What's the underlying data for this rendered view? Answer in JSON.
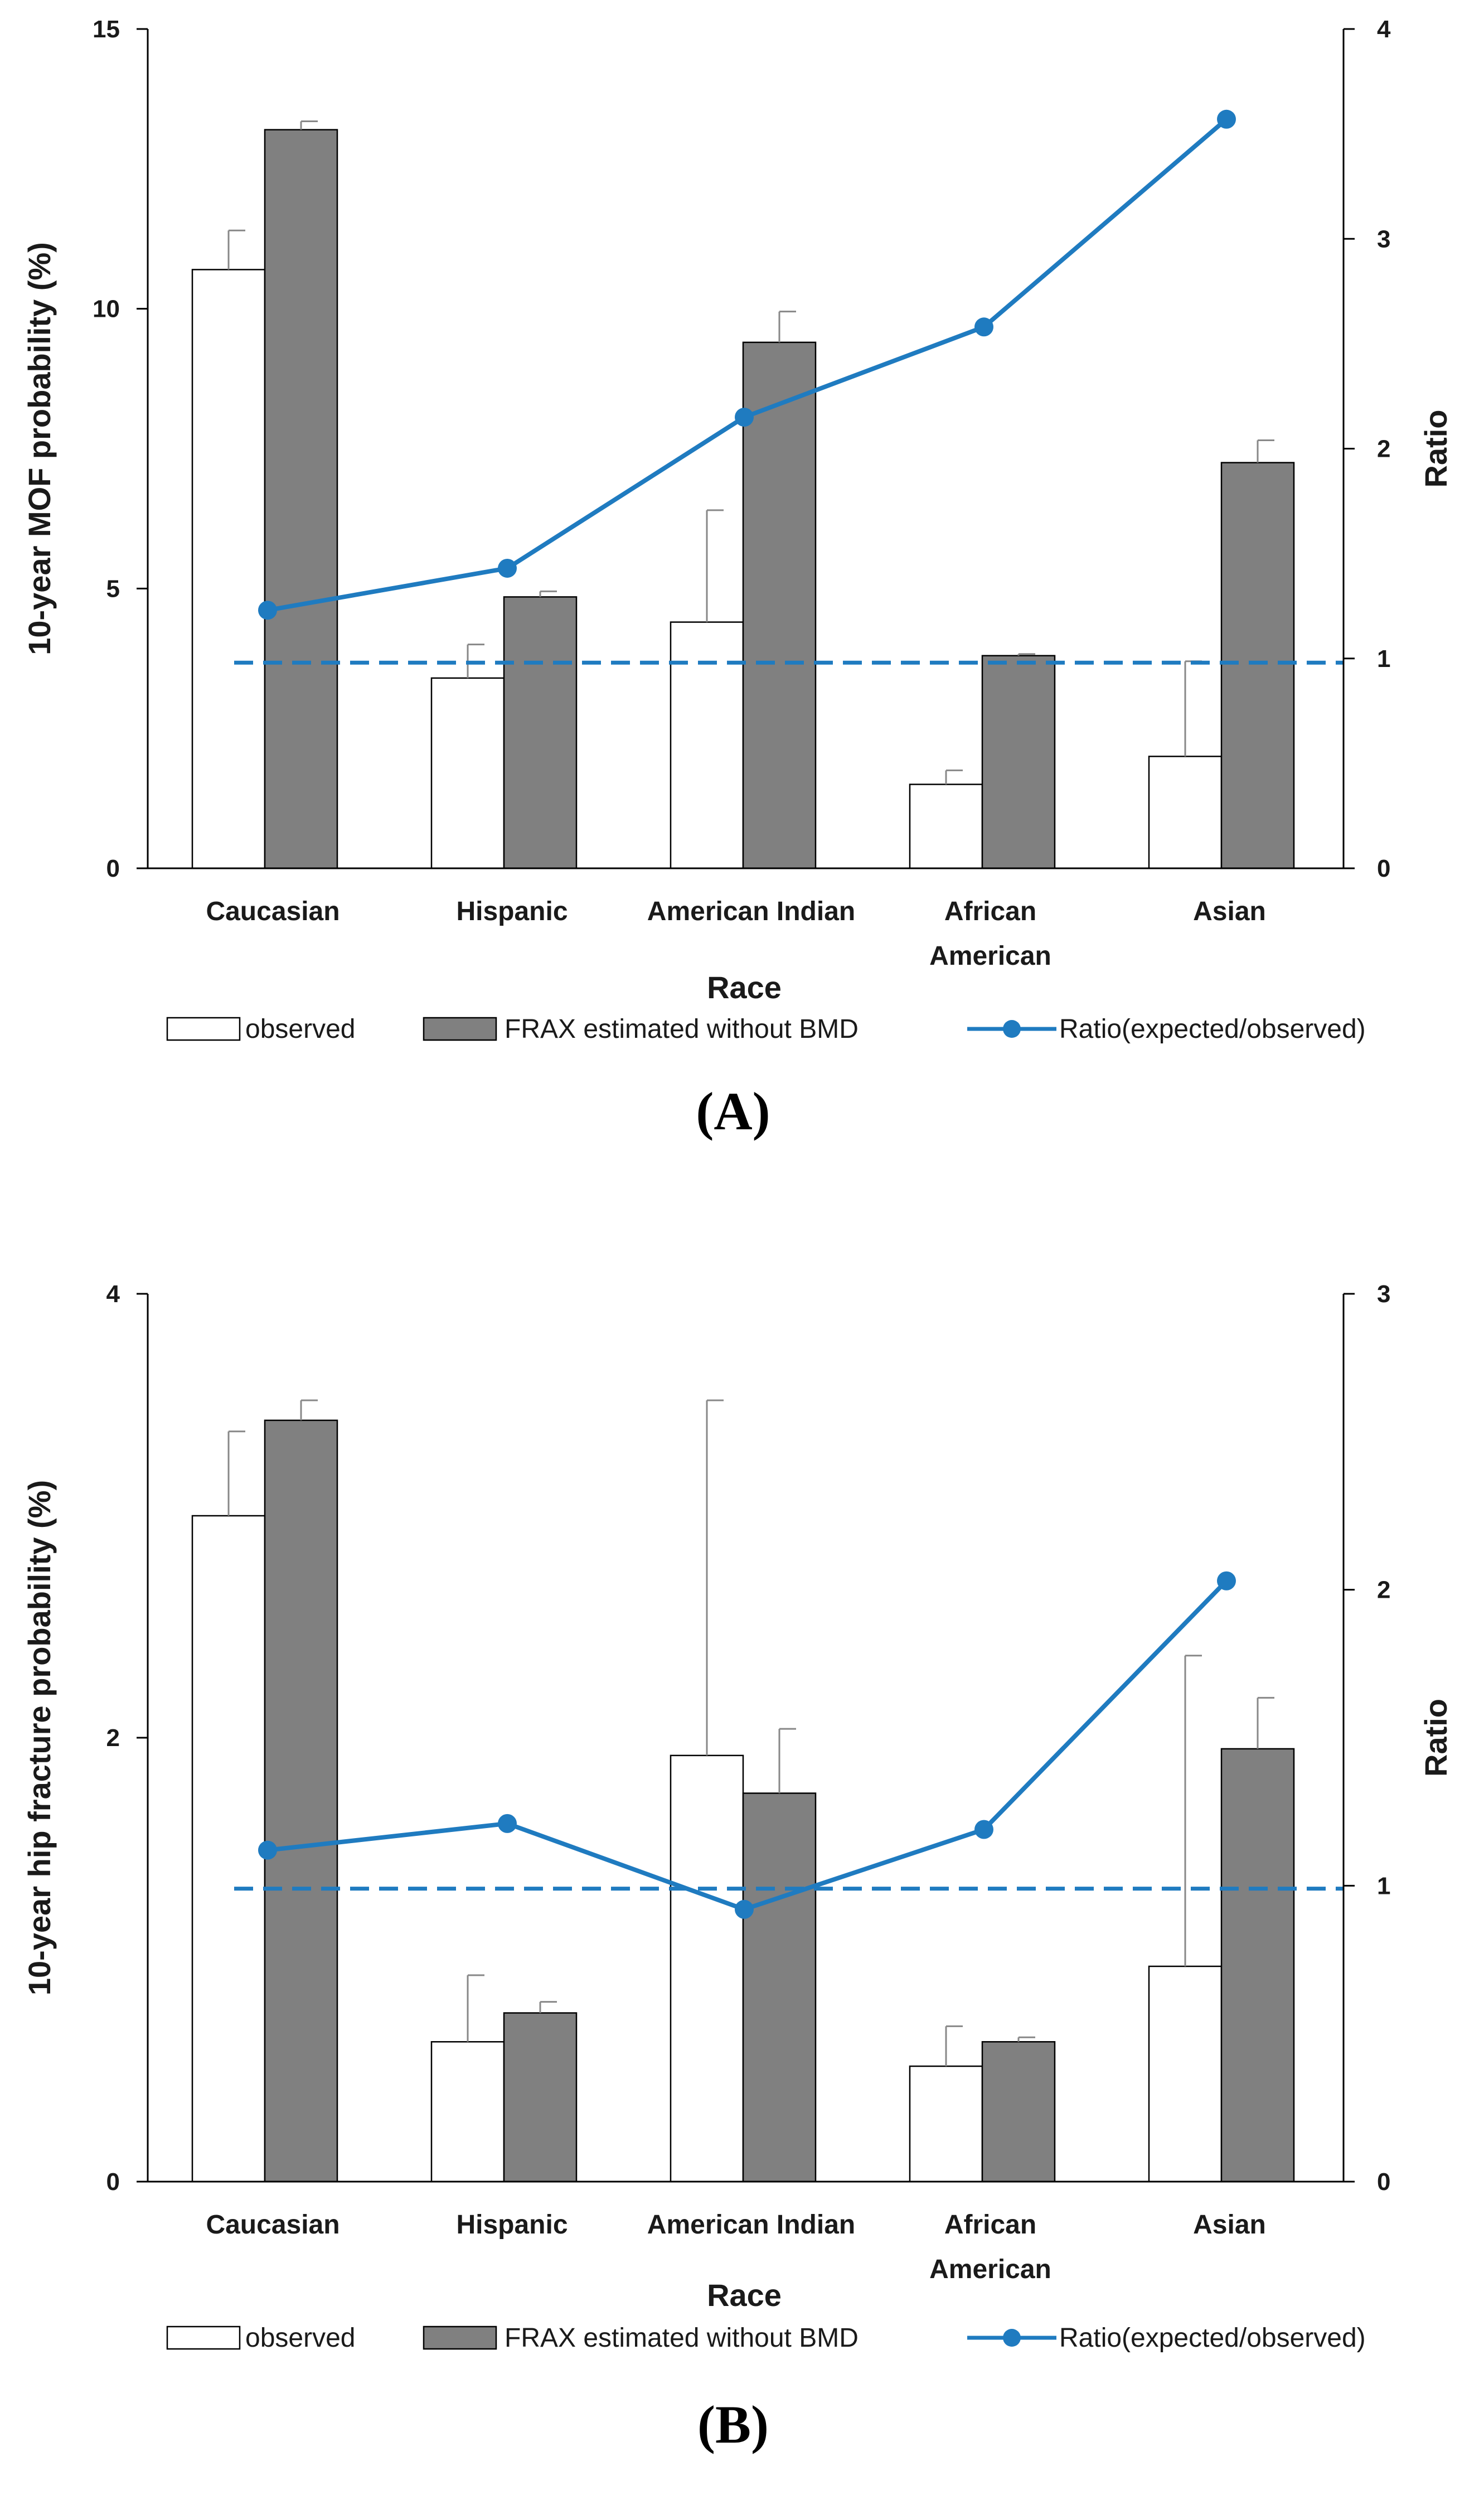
{
  "colors": {
    "observed_fill": "#ffffff",
    "frax_fill": "#808080",
    "ratio_line": "#1f7bc0",
    "reference_line": "#1f7bc0",
    "axis": "#000000",
    "error_bar": "#888888"
  },
  "legend": {
    "observed": "observed",
    "frax": "FRAX estimated without BMD",
    "ratio": "Ratio(expected/observed)"
  },
  "chart_data": [
    {
      "type": "bar",
      "panel_label": "(A)",
      "categories": [
        "Caucasian",
        "Hispanic",
        "American Indian",
        "African American",
        "Asian"
      ],
      "xlabel": "Race",
      "ylabel": "10-year MOF probability (%)",
      "ylabel_right": "Ratio",
      "ylim": [
        0,
        15
      ],
      "y_ticks": [
        "0",
        "5",
        "10",
        "15"
      ],
      "y_tick_values": [
        0,
        5,
        10,
        15
      ],
      "ylim_right": [
        0,
        4
      ],
      "y_ticks_right": [
        "0",
        "1",
        "2",
        "3",
        "4"
      ],
      "y_tick_values_right": [
        0,
        1,
        2,
        3,
        4
      ],
      "series": [
        {
          "name": "observed",
          "values": [
            10.7,
            3.4,
            4.4,
            1.5,
            2.0
          ],
          "error_upper": [
            11.4,
            4.0,
            6.4,
            1.75,
            3.7
          ]
        },
        {
          "name": "FRAX estimated without BMD",
          "values": [
            13.2,
            4.85,
            9.4,
            3.8,
            7.25
          ],
          "error_upper": [
            13.35,
            4.95,
            9.95,
            3.83,
            7.65
          ]
        }
      ],
      "ratio_series": {
        "name": "Ratio(expected/observed)",
        "axis": "right",
        "values": [
          1.23,
          1.43,
          2.15,
          2.58,
          3.57
        ]
      },
      "reference_line": {
        "axis": "right",
        "value": 0.98,
        "style": "dashed"
      }
    },
    {
      "type": "bar",
      "panel_label": "(B)",
      "categories": [
        "Caucasian",
        "Hispanic",
        "American Indian",
        "African American",
        "Asian"
      ],
      "xlabel": "Race",
      "ylabel": "10-year hip fracture probability (%)",
      "ylabel_right": "Ratio",
      "ylim": [
        0,
        4
      ],
      "y_ticks": [
        "0",
        "2",
        "4"
      ],
      "y_tick_values": [
        0,
        2,
        4
      ],
      "ylim_right": [
        0,
        3
      ],
      "y_ticks_right": [
        "0",
        "1",
        "2",
        "3"
      ],
      "y_tick_values_right": [
        0,
        1,
        2,
        3
      ],
      "series": [
        {
          "name": "observed",
          "values": [
            3.0,
            0.63,
            1.92,
            0.52,
            0.97
          ],
          "error_upper": [
            3.38,
            0.93,
            3.52,
            0.7,
            2.37
          ]
        },
        {
          "name": "FRAX estimated without BMD",
          "values": [
            3.43,
            0.76,
            1.75,
            0.63,
            1.95
          ],
          "error_upper": [
            3.52,
            0.81,
            2.04,
            0.65,
            2.18
          ]
        }
      ],
      "ratio_series": {
        "name": "Ratio(expected/observed)",
        "axis": "right",
        "values": [
          1.12,
          1.21,
          0.92,
          1.19,
          2.03
        ]
      },
      "reference_line": {
        "axis": "right",
        "value": 0.99,
        "style": "dashed"
      }
    }
  ]
}
